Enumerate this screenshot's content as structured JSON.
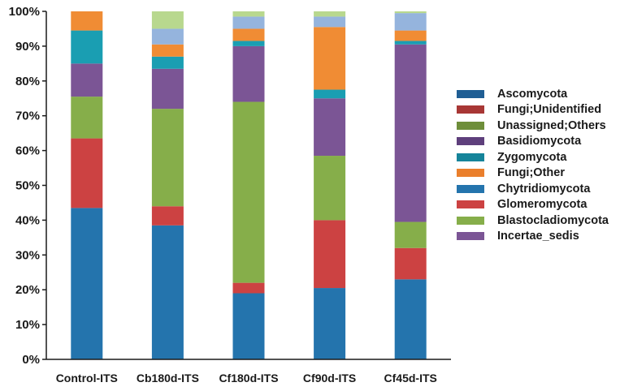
{
  "chart_data": {
    "type": "bar",
    "stacked": true,
    "categories": [
      "Control-ITS",
      "Cb180d-ITS",
      "Cf180d-ITS",
      "Cf90d-ITS",
      "Cf45d-ITS"
    ],
    "series": [
      {
        "name": "Chytridiomycota",
        "color": "#2474AD",
        "values": [
          43.5,
          38.5,
          19,
          20.5,
          23
        ]
      },
      {
        "name": "Glomeromycota",
        "color": "#CC4242",
        "values": [
          20,
          5.5,
          3,
          19.5,
          9
        ]
      },
      {
        "name": "Blastocladiomycota",
        "color": "#86AE4A",
        "values": [
          12,
          28,
          52,
          18.5,
          7.5
        ]
      },
      {
        "name": "Incertae_sedis",
        "color": "#7B5595",
        "values": [
          9.5,
          11.5,
          16,
          16.5,
          51
        ]
      },
      {
        "name": "Zygomycota",
        "color": "#1A9EB2",
        "values": [
          9.5,
          3.5,
          1.5,
          2.5,
          1
        ]
      },
      {
        "name": "Fungi;Other",
        "color": "#F08C34",
        "values": [
          5.5,
          3.5,
          3.5,
          18,
          3
        ]
      },
      {
        "name": "Ascomycota",
        "color": "#95B4DD",
        "values": [
          0,
          4.5,
          3.5,
          3,
          5
        ]
      },
      {
        "name": "Unassigned;Others",
        "color": "#B8D88E",
        "values": [
          0,
          5,
          1.5,
          1.5,
          0.5
        ]
      }
    ],
    "yticks": [
      "0%",
      "10%",
      "20%",
      "30%",
      "40%",
      "50%",
      "60%",
      "70%",
      "80%",
      "90%",
      "100%"
    ],
    "ylim": [
      0,
      100
    ],
    "title": "",
    "xlabel": "",
    "ylabel": "",
    "legend": {
      "position": "right",
      "items": [
        {
          "label": "Ascomycota",
          "color": "#1F5E94"
        },
        {
          "label": "Fungi;Unidentified",
          "color": "#A83735"
        },
        {
          "label": "Unassigned;Others",
          "color": "#6E8E3A"
        },
        {
          "label": "Basidiomycota",
          "color": "#5E3F7C"
        },
        {
          "label": "Zygomycota",
          "color": "#15849A"
        },
        {
          "label": "Fungi;Other",
          "color": "#EA7F2C"
        },
        {
          "label": "Chytridiomycota",
          "color": "#2474AD"
        },
        {
          "label": "Glomeromycota",
          "color": "#CC4242"
        },
        {
          "label": "Blastocladiomycota",
          "color": "#86AE4A"
        },
        {
          "label": "Incertae_sedis",
          "color": "#7B5595"
        }
      ]
    }
  }
}
